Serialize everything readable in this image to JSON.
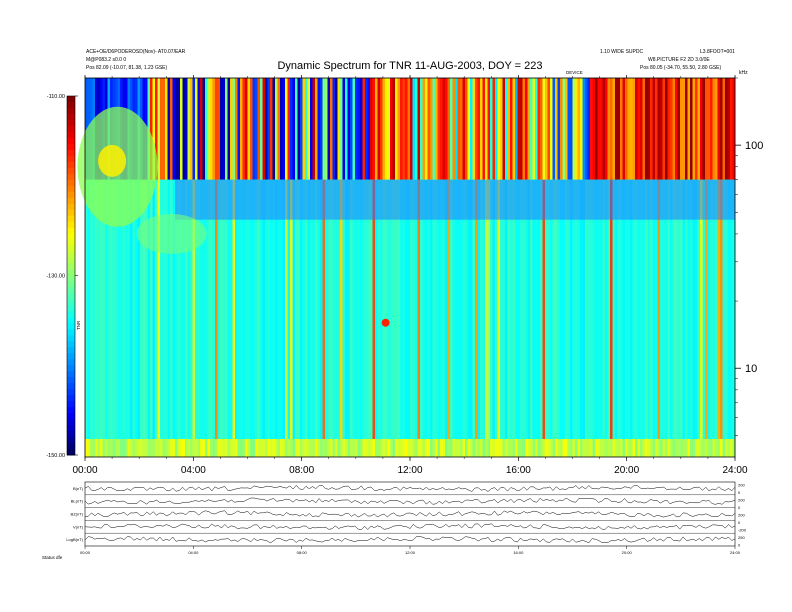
{
  "header": {
    "title": "Dynamic Spectrum for TNR 11-AUG-2003, DOY = 223",
    "left_meta_1": "ACE+OE/D6PODEROSD(Nov)- AT0.07/EAR",
    "left_meta_2": "M@P083.2 s0.0 0",
    "left_meta_3": "Pos  82.09 (-10.07, 81.38, 1.23 GSE)",
    "right_meta_1": "1.10 WIDE SUPDC",
    "right_meta_2": "W8.PICTURE F2 2D 3.0/0E",
    "right_meta_3": "Pos  80.05 (-34.70, 55.50, 2.80 GSE)",
    "right_meta_4": "L3.8FOOT=001",
    "sweep_label": "DEVICE",
    "khz_label": "kHz"
  },
  "chart_data": {
    "type": "heatmap",
    "title": "Dynamic Spectrum for TNR 11-AUG-2003, DOY = 223",
    "x_ticks": [
      "00:00",
      "04:00",
      "08:00",
      "12:00",
      "16:00",
      "20:00",
      "24:00"
    ],
    "xlim_hours": [
      0,
      24
    ],
    "y_scale": "log",
    "y_ticks": [
      "100",
      "10"
    ],
    "ylim_khz": [
      4,
      200
    ],
    "colorbar_ticks": [
      "-110.00",
      "-130.00",
      "-150.00"
    ],
    "colorbar_range_db": [
      -150,
      -110
    ],
    "colorbar_label": "TNR",
    "colormap": [
      "#00004a",
      "#0000ff",
      "#00ffff",
      "#ffff00",
      "#ff0000"
    ],
    "panel_x_ticks": [
      "00:00",
      "04:00",
      "08:00",
      "12:00",
      "16:00",
      "20:00",
      "24:00"
    ],
    "panel_labels": [
      "B(nT)",
      "BL(nT)",
      "BZ(nT)",
      "V(nT)",
      "LogB(nT)"
    ],
    "panel_right_ticks": [
      "200",
      "0",
      "200",
      "0",
      "200",
      "0",
      "-200",
      "250",
      "0"
    ],
    "footer_label": "Status  dfe"
  }
}
